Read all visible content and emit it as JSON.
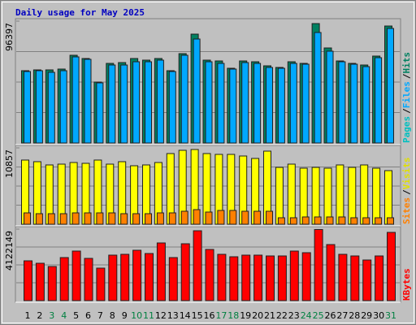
{
  "page": {
    "title": "Daily usage for May 2025",
    "categories": [
      "1",
      "2",
      "3",
      "4",
      "5",
      "6",
      "7",
      "8",
      "9",
      "10",
      "11",
      "12",
      "13",
      "14",
      "15",
      "16",
      "17",
      "18",
      "19",
      "20",
      "21",
      "22",
      "23",
      "24",
      "25",
      "26",
      "27",
      "28",
      "29",
      "30",
      "31"
    ],
    "category_colors": [
      "#000000",
      "#000000",
      "#008040",
      "#008040",
      "#000000",
      "#000000",
      "#000000",
      "#000000",
      "#000000",
      "#008040",
      "#008040",
      "#000000",
      "#000000",
      "#000000",
      "#000000",
      "#000000",
      "#008040",
      "#008040",
      "#000000",
      "#000000",
      "#000000",
      "#000000",
      "#000000",
      "#008040",
      "#008040",
      "#000000",
      "#000000",
      "#000000",
      "#000000",
      "#000000",
      "#008040"
    ],
    "legend_separator": "/"
  },
  "chart_data": [
    {
      "type": "bar",
      "ylim": [
        0,
        96397
      ],
      "yticks": [
        96397
      ],
      "legend_only": [
        {
          "name": "Pages",
          "color": "#00c0c0"
        }
      ],
      "series": [
        {
          "name": "Hits",
          "color": "#008060",
          "values": [
            57191,
            57834,
            57834,
            58477,
            69401,
            66830,
            48195,
            62975,
            63617,
            66830,
            65545,
            66830,
            57191,
            70686,
            86108,
            65545,
            64903,
            59119,
            64903,
            64260,
            61047,
            59762,
            64260,
            62975,
            94462,
            75184,
            64903,
            62975,
            61690,
            68758,
            92534
          ]
        },
        {
          "name": "Files",
          "color": "#00a8ff",
          "values": [
            56549,
            57191,
            55906,
            57191,
            68116,
            66188,
            47552,
            61690,
            61690,
            64260,
            64260,
            65545,
            56549,
            69401,
            82253,
            64260,
            62975,
            58477,
            63617,
            62975,
            59762,
            59119,
            62975,
            62333,
            87394,
            72614,
            64260,
            62333,
            60404,
            67473,
            90607
          ]
        }
      ]
    },
    {
      "type": "bar",
      "ylim": [
        0,
        10857
      ],
      "yticks": [
        10857
      ],
      "legend_only": [],
      "series": [
        {
          "name": "Visits",
          "color": "#ffff00",
          "values": [
            9125,
            8894,
            8432,
            8547,
            8778,
            8663,
            9125,
            8547,
            8894,
            8316,
            8432,
            8778,
            10049,
            10511,
            10626,
            10049,
            9933,
            9933,
            9702,
            9356,
            10395,
            8085,
            8547,
            7970,
            8085,
            7970,
            8432,
            8085,
            8432,
            7970,
            7623
          ]
        },
        {
          "name": "Sites",
          "color": "#ff8000",
          "values": [
            1617,
            1502,
            1502,
            1502,
            1617,
            1617,
            1617,
            1617,
            1502,
            1502,
            1502,
            1617,
            1617,
            1848,
            2079,
            1733,
            1964,
            1964,
            1848,
            1848,
            1848,
            924,
            924,
            1040,
            1040,
            1040,
            1040,
            924,
            924,
            924,
            924
          ]
        }
      ]
    },
    {
      "type": "bar",
      "ylim": [
        0,
        4122149
      ],
      "yticks": [
        4122149
      ],
      "legend_only": [],
      "series": [
        {
          "name": "KBytes",
          "color": "#ff0000",
          "values": [
            2295307,
            2154778,
            1967406,
            2482679,
            2857423,
            2435836,
            1873720,
            2623208,
            2670051,
            2904266,
            2716894,
            3325853,
            2482679,
            3279010,
            4028498,
            2951109,
            2670051,
            2529522,
            2623208,
            2623208,
            2576365,
            2576365,
            2857423,
            2763737,
            4100000,
            3232167,
            2670051,
            2576365,
            2342150,
            2576365,
            3934812
          ]
        }
      ]
    }
  ]
}
